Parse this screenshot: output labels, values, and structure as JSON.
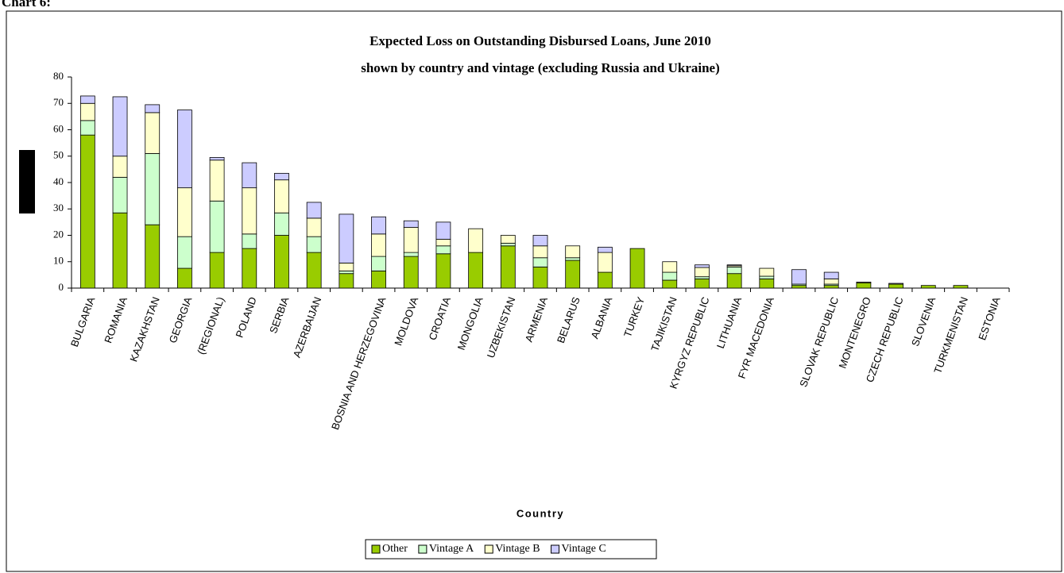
{
  "page_label": "Chart 6:",
  "chart_data": {
    "type": "stacked_bar",
    "title": "Expected Loss on Outstanding Disbursed Loans, June 2010",
    "subtitle": "shown by country and vintage (excluding Russia and Ukraine)",
    "x_label": "Country",
    "categories": [
      "BULGARIA",
      "ROMANIA",
      "KAZAKHSTAN",
      "GEORGIA",
      "(REGIONAL)",
      "POLAND",
      "SERBIA",
      "AZERBAIJAN",
      null,
      "BOSNIA AND HERZEGOVINA",
      "MOLDOVA",
      "CROATIA",
      "MONGOLIA",
      "UZBEKISTAN",
      "ARMENIA",
      "BELARUS",
      "ALBANIA",
      "TURKEY",
      "TAJIKISTAN",
      "KYRGYZ REPUBLIC",
      "LITHUANIA",
      "FYR MACEDONIA",
      null,
      "SLOVAK REPUBLIC",
      "MONTENEGRO",
      "CZECH REPUBLIC",
      "SLOVENIA",
      "TURKMENISTAN",
      "ESTONIA"
    ],
    "series": [
      {
        "name": "Other",
        "color": "#99cc00",
        "values": [
          58,
          28.5,
          24,
          7.5,
          13.5,
          15,
          20,
          13.5,
          5.5,
          6.5,
          12,
          13,
          13.5,
          16,
          8,
          10.5,
          6,
          15,
          3,
          3.5,
          5.5,
          3.5,
          1,
          1,
          2,
          1.5,
          1,
          1,
          0
        ]
      },
      {
        "name": "Vintage A",
        "color": "#ccffcc",
        "values": [
          5.5,
          13.5,
          27,
          12,
          19.5,
          5.5,
          8.5,
          6,
          1,
          5.5,
          1.5,
          3,
          0,
          1,
          3.5,
          1,
          0,
          0,
          3,
          0.8,
          2.5,
          1,
          0.5,
          0.5,
          0,
          0,
          0,
          0,
          0
        ]
      },
      {
        "name": "Vintage B",
        "color": "#ffffcc",
        "values": [
          6.5,
          8,
          15.5,
          18.5,
          15.5,
          17.5,
          12.5,
          7,
          3,
          8.5,
          9.5,
          2.5,
          9,
          3,
          4.5,
          4.5,
          7.5,
          0,
          4,
          3.5,
          0.5,
          3,
          0,
          2,
          0.3,
          0,
          0,
          0,
          0
        ]
      },
      {
        "name": "Vintage C",
        "color": "#ccccff",
        "values": [
          2.8,
          22.5,
          3,
          29.5,
          1,
          9.5,
          2.5,
          6,
          18.5,
          6.5,
          2.5,
          6.5,
          0,
          0,
          4,
          0,
          2,
          0,
          0,
          1,
          0.3,
          0,
          5.5,
          2.5,
          0,
          0.3,
          0,
          0,
          0
        ]
      }
    ],
    "ylim": [
      0,
      80
    ],
    "yticks": [
      0,
      10,
      20,
      30,
      40,
      50,
      60,
      70,
      80
    ],
    "legend": "bottom"
  }
}
